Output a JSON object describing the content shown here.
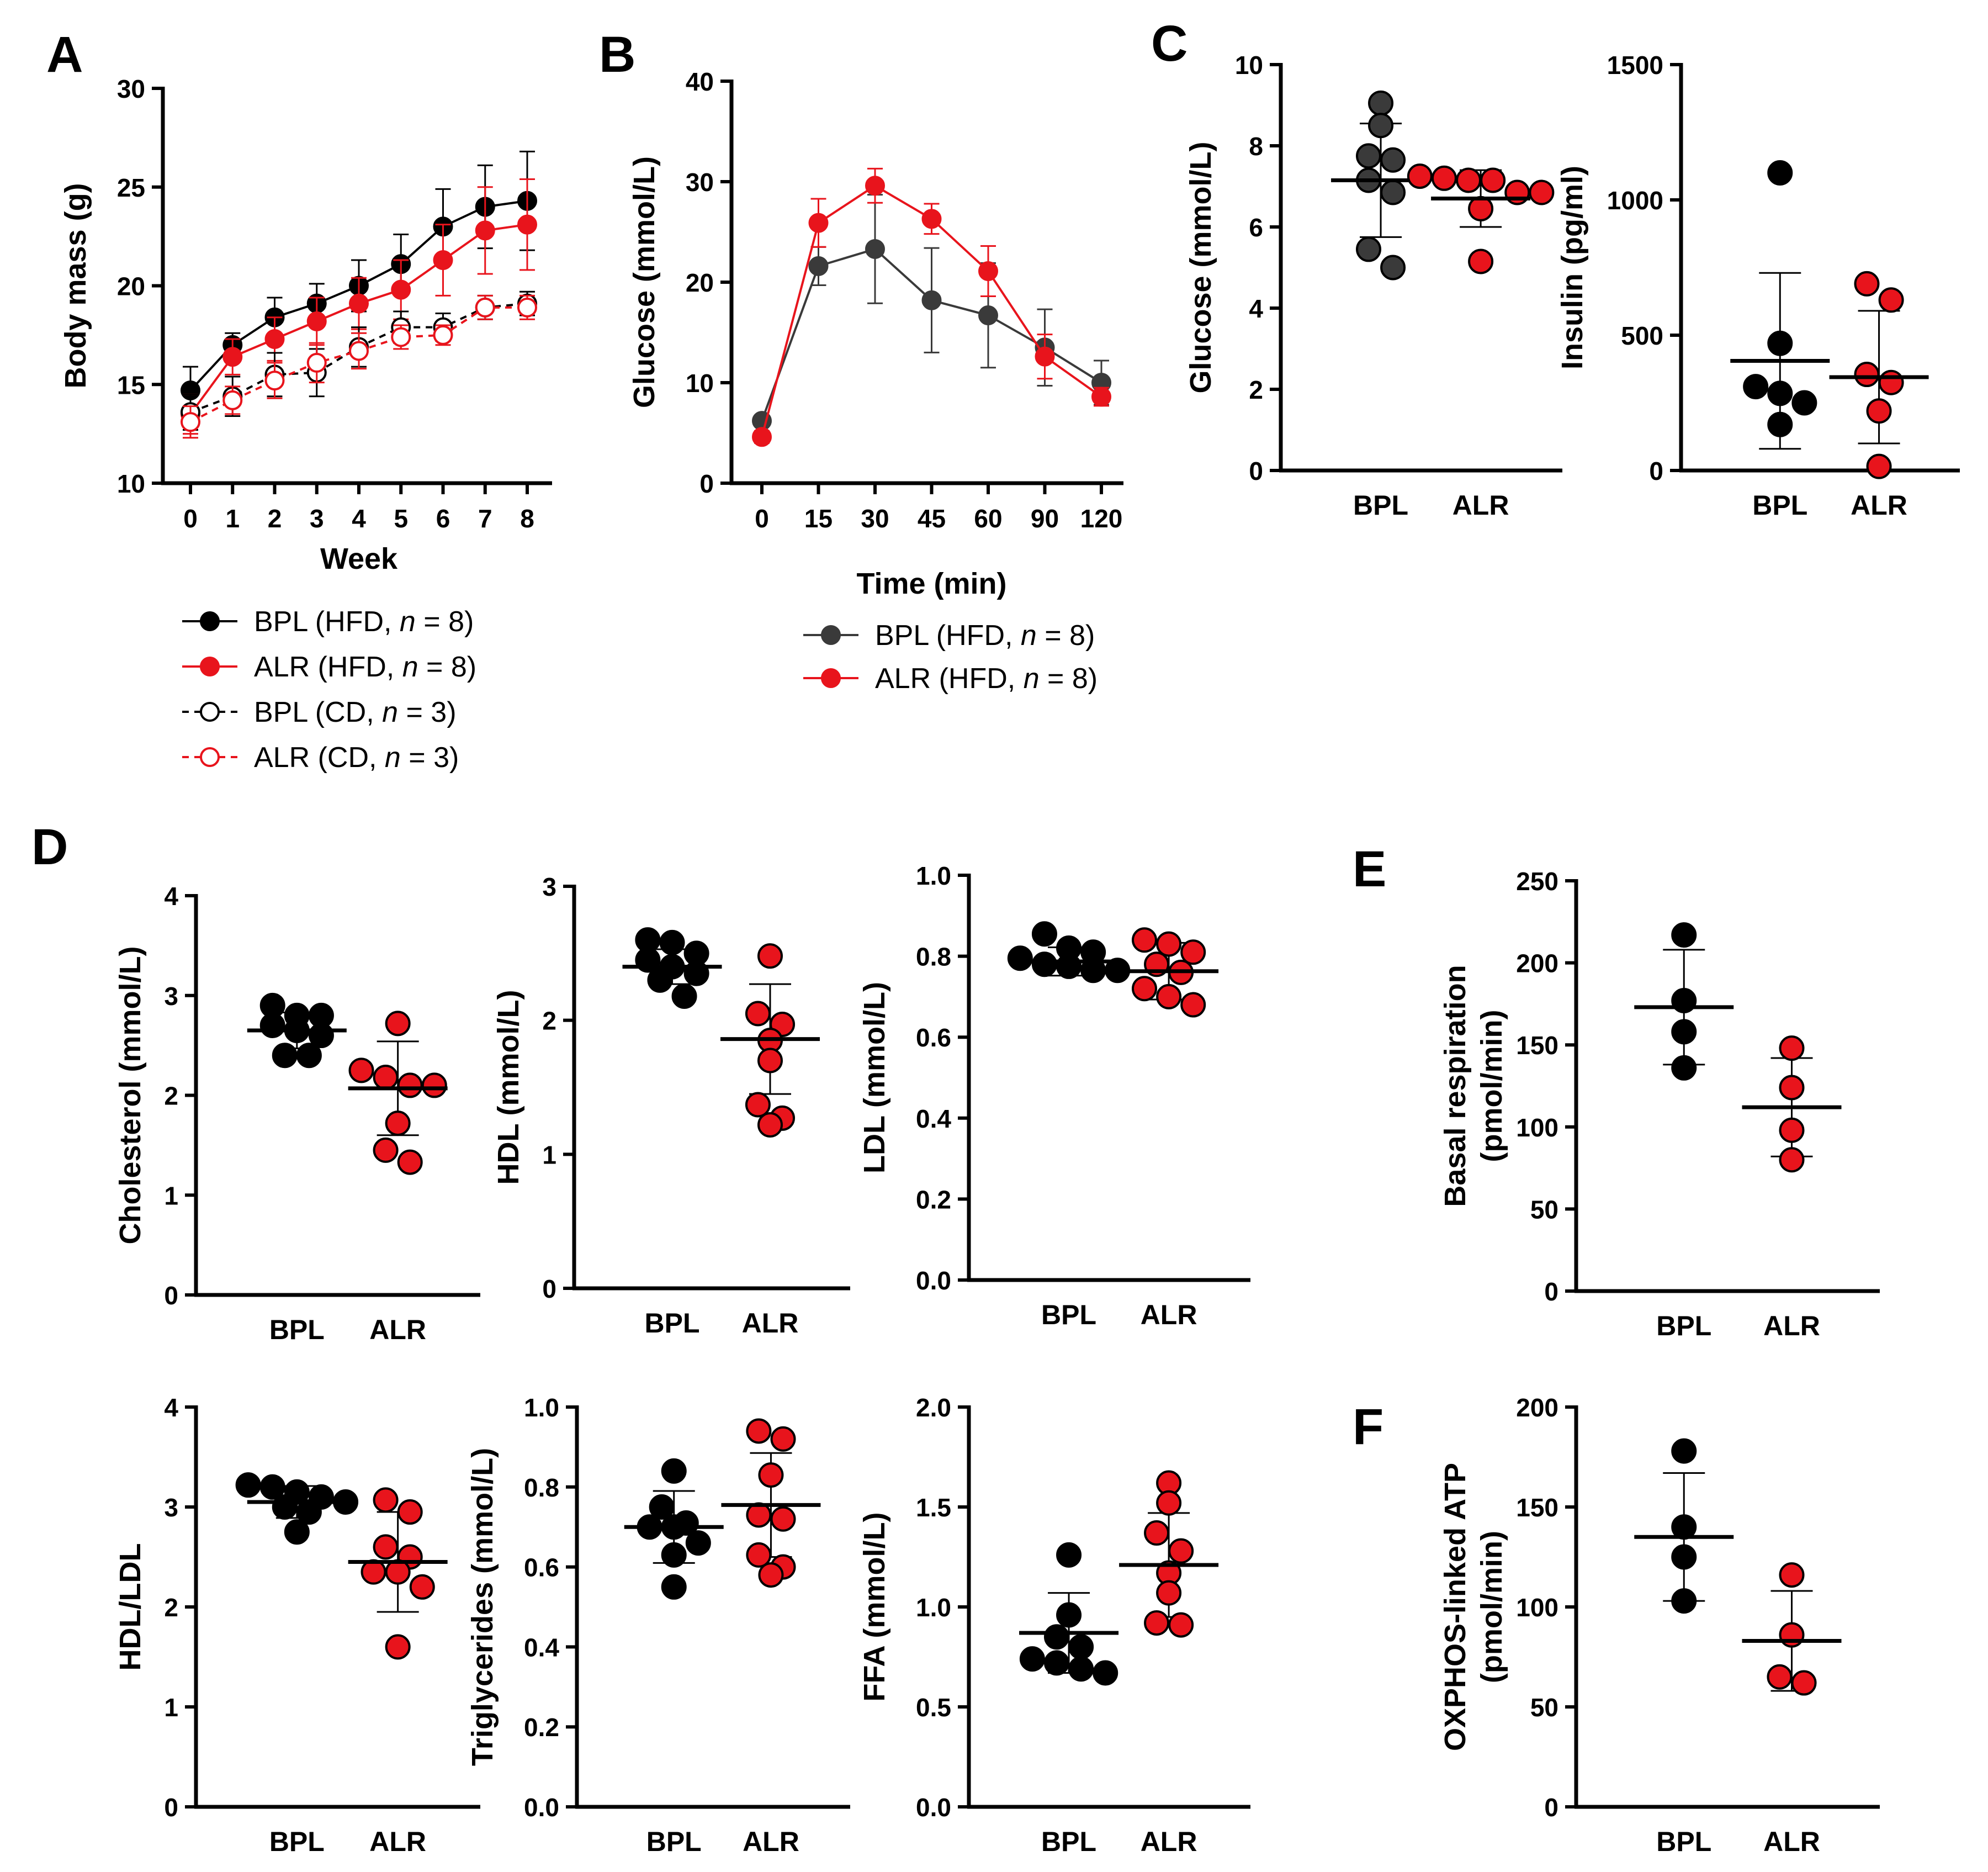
{
  "colors": {
    "bpl": "#000000",
    "bpl_gray": "#3a3a3a",
    "alr": "#e8141c",
    "axis": "#000000"
  },
  "panel_letters": [
    "A",
    "B",
    "C",
    "D",
    "E",
    "F"
  ],
  "chart_data": [
    {
      "id": "A",
      "type": "line",
      "letter": "A",
      "xlabel": "Week",
      "ylabel": "Body mass (g)",
      "ylim": [
        10,
        30
      ],
      "yticks": [
        10,
        15,
        20,
        25,
        30
      ],
      "categories": [
        "0",
        "1",
        "2",
        "3",
        "4",
        "5",
        "6",
        "7",
        "8"
      ],
      "series": [
        {
          "name": "BPL (HFD, n = 8)",
          "group": "BPL",
          "diet": "(HFD, ",
          "n": "8",
          "color": "#000000",
          "filled": true,
          "dashed": false,
          "values": [
            14.7,
            17.0,
            18.4,
            19.1,
            20.0,
            21.1,
            23.0,
            24.0,
            24.3
          ],
          "errors": [
            1.2,
            0.6,
            1.0,
            1.0,
            1.3,
            1.5,
            1.9,
            2.1,
            2.5
          ]
        },
        {
          "name": "ALR (HFD, n = 8)",
          "group": "ALR",
          "diet": "(HFD, ",
          "n": "8",
          "color": "#e8141c",
          "filled": true,
          "dashed": false,
          "values": [
            13.5,
            16.4,
            17.3,
            18.2,
            19.1,
            19.8,
            21.3,
            22.8,
            23.1
          ],
          "errors": [
            1.0,
            0.9,
            1.1,
            1.2,
            1.3,
            1.5,
            1.8,
            2.2,
            2.3
          ]
        },
        {
          "name": "BPL (CD, n = 3)",
          "group": "BPL",
          "diet": "(CD, ",
          "n": "3",
          "color": "#000000",
          "filled": false,
          "dashed": true,
          "values": [
            13.6,
            14.4,
            15.5,
            15.6,
            16.9,
            17.9,
            17.9,
            18.9,
            19.1
          ],
          "errors": [
            0.9,
            1.0,
            1.1,
            1.2,
            1.0,
            0.8,
            0.7,
            0.6,
            0.6
          ]
        },
        {
          "name": "ALR (CD, n = 3)",
          "group": "ALR",
          "diet": "(CD, ",
          "n": "3",
          "color": "#e8141c",
          "filled": false,
          "dashed": true,
          "values": [
            13.1,
            14.2,
            15.2,
            16.1,
            16.7,
            17.4,
            17.5,
            18.9,
            18.9
          ],
          "errors": [
            0.8,
            0.7,
            0.9,
            1.0,
            0.9,
            0.6,
            0.5,
            0.6,
            0.6
          ]
        }
      ]
    },
    {
      "id": "B",
      "type": "line",
      "letter": "B",
      "xlabel": "Time (min)",
      "ylabel": "Glucose (mmol/L)",
      "ylim": [
        0,
        40
      ],
      "yticks": [
        0,
        10,
        20,
        30,
        40
      ],
      "categories": [
        "0",
        "15",
        "30",
        "45",
        "60",
        "90",
        "120"
      ],
      "series": [
        {
          "name": "BPL (HFD, n = 8)",
          "group": "BPL",
          "diet": "(HFD, ",
          "n": "8",
          "color": "#3a3a3a",
          "filled": true,
          "dashed": false,
          "values": [
            6.2,
            21.6,
            23.3,
            18.2,
            16.7,
            13.5,
            10.0
          ],
          "errors": [
            0.3,
            1.9,
            5.4,
            5.2,
            5.2,
            3.8,
            2.2
          ]
        },
        {
          "name": "ALR (HFD, n = 8)",
          "group": "ALR",
          "diet": "(HFD, ",
          "n": "8",
          "color": "#e8141c",
          "filled": true,
          "dashed": false,
          "values": [
            4.6,
            25.9,
            29.6,
            26.3,
            21.1,
            12.6,
            8.6
          ],
          "errors": [
            0.6,
            2.4,
            1.7,
            1.5,
            2.5,
            2.2,
            0.9
          ]
        }
      ]
    },
    {
      "id": "C1",
      "type": "scatter",
      "letter": "C",
      "ylabel": "Glucose (mmol/L)",
      "ylim": [
        0,
        10
      ],
      "yticks": [
        0,
        2,
        4,
        6,
        8,
        10
      ],
      "categories": [
        "BPL",
        "ALR"
      ],
      "groups": [
        {
          "name": "BPL",
          "color": "#3a3a3a",
          "mean": 7.15,
          "sd": 1.4,
          "points": [
            9.05,
            8.5,
            7.75,
            7.65,
            7.15,
            6.85,
            5.45,
            5.0
          ]
        },
        {
          "name": "ALR",
          "color": "#e8141c",
          "mean": 6.7,
          "sd": 0.7,
          "points": [
            7.25,
            7.2,
            7.15,
            7.15,
            6.85,
            6.85,
            6.45,
            5.15
          ]
        }
      ]
    },
    {
      "id": "C2",
      "type": "scatter",
      "ylabel": "Insulin (pg/ml)",
      "ylim": [
        0,
        1500
      ],
      "yticks": [
        0,
        500,
        1000,
        1500
      ],
      "categories": [
        "BPL",
        "ALR"
      ],
      "groups": [
        {
          "name": "BPL",
          "color": "#000000",
          "mean": 405,
          "sd": 325,
          "points": [
            1100,
            470,
            310,
            285,
            250,
            170
          ]
        },
        {
          "name": "ALR",
          "color": "#e8141c",
          "mean": 345,
          "sd": 245,
          "points": [
            690,
            630,
            355,
            325,
            220,
            15
          ]
        }
      ]
    },
    {
      "id": "D1",
      "type": "scatter",
      "letter": "D",
      "ylabel": "Cholesterol (mmol/L)",
      "ylim": [
        0,
        4
      ],
      "yticks": [
        0,
        1,
        2,
        3,
        4
      ],
      "categories": [
        "BPL",
        "ALR"
      ],
      "groups": [
        {
          "name": "BPL",
          "color": "#000000",
          "mean": 2.65,
          "sd": 0.18,
          "points": [
            2.9,
            2.8,
            2.8,
            2.7,
            2.65,
            2.6,
            2.4,
            2.4
          ]
        },
        {
          "name": "ALR",
          "color": "#e8141c",
          "mean": 2.07,
          "sd": 0.47,
          "points": [
            2.72,
            2.25,
            2.18,
            2.1,
            2.1,
            1.72,
            1.45,
            1.33
          ]
        }
      ]
    },
    {
      "id": "D2",
      "type": "scatter",
      "ylabel": "HDL (mmol/L)",
      "ylim": [
        0,
        3
      ],
      "yticks": [
        0,
        1,
        2,
        3
      ],
      "categories": [
        "BPL",
        "ALR"
      ],
      "groups": [
        {
          "name": "BPL",
          "color": "#000000",
          "mean": 2.4,
          "sd": 0.13,
          "points": [
            2.6,
            2.58,
            2.5,
            2.45,
            2.4,
            2.35,
            2.3,
            2.18
          ]
        },
        {
          "name": "ALR",
          "color": "#e8141c",
          "mean": 1.86,
          "sd": 0.41,
          "points": [
            2.48,
            2.05,
            1.97,
            1.85,
            1.7,
            1.37,
            1.27,
            1.22
          ]
        }
      ]
    },
    {
      "id": "D3",
      "type": "scatter",
      "ylabel": "LDL (mmol/L)",
      "ylim": [
        0,
        1
      ],
      "yticks": [
        "0.0",
        "0.2",
        "0.4",
        "0.6",
        "0.8",
        "1.0"
      ],
      "categories": [
        "BPL",
        "ALR"
      ],
      "groups": [
        {
          "name": "BPL",
          "color": "#000000",
          "mean": 0.787,
          "sd": 0.035,
          "points": [
            0.855,
            0.82,
            0.81,
            0.795,
            0.78,
            0.775,
            0.765,
            0.765
          ]
        },
        {
          "name": "ALR",
          "color": "#e8141c",
          "mean": 0.763,
          "sd": 0.07,
          "points": [
            0.84,
            0.83,
            0.81,
            0.78,
            0.76,
            0.72,
            0.7,
            0.68
          ]
        }
      ]
    },
    {
      "id": "D4",
      "type": "scatter",
      "ylabel": "HDL/LDL",
      "ylim": [
        0,
        4
      ],
      "yticks": [
        0,
        1,
        2,
        3,
        4
      ],
      "categories": [
        "BPL",
        "ALR"
      ],
      "groups": [
        {
          "name": "BPL",
          "color": "#000000",
          "mean": 3.05,
          "sd": 0.16,
          "points": [
            3.22,
            3.2,
            3.15,
            3.1,
            3.05,
            3.0,
            2.95,
            2.75
          ]
        },
        {
          "name": "ALR",
          "color": "#e8141c",
          "mean": 2.45,
          "sd": 0.5,
          "points": [
            3.07,
            2.95,
            2.6,
            2.5,
            2.35,
            2.35,
            2.2,
            1.6
          ]
        }
      ]
    },
    {
      "id": "D5",
      "type": "scatter",
      "ylabel": "Triglycerides (mmol/L)",
      "ylim": [
        0,
        1
      ],
      "yticks": [
        "0.0",
        "0.2",
        "0.4",
        "0.6",
        "0.8",
        "1.0"
      ],
      "categories": [
        "BPL",
        "ALR"
      ],
      "groups": [
        {
          "name": "BPL",
          "color": "#000000",
          "mean": 0.7,
          "sd": 0.09,
          "points": [
            0.84,
            0.75,
            0.71,
            0.7,
            0.7,
            0.66,
            0.63,
            0.55
          ]
        },
        {
          "name": "ALR",
          "color": "#e8141c",
          "mean": 0.755,
          "sd": 0.13,
          "points": [
            0.94,
            0.92,
            0.83,
            0.73,
            0.72,
            0.63,
            0.6,
            0.58
          ]
        }
      ]
    },
    {
      "id": "D6",
      "type": "scatter",
      "ylabel": "FFA (mmol/L)",
      "ylim": [
        0,
        2
      ],
      "yticks": [
        "0.0",
        "0.5",
        "1.0",
        "1.5",
        "2.0"
      ],
      "categories": [
        "BPL",
        "ALR"
      ],
      "groups": [
        {
          "name": "BPL",
          "color": "#000000",
          "mean": 0.87,
          "sd": 0.2,
          "points": [
            1.26,
            0.96,
            0.85,
            0.8,
            0.74,
            0.72,
            0.69,
            0.67
          ]
        },
        {
          "name": "ALR",
          "color": "#e8141c",
          "mean": 1.21,
          "sd": 0.26,
          "points": [
            1.62,
            1.52,
            1.37,
            1.28,
            1.17,
            1.07,
            0.92,
            0.91
          ]
        }
      ]
    },
    {
      "id": "E",
      "type": "scatter",
      "letter": "E",
      "ylabel": "Basal respiration",
      "ylabel2": "(pmol/min)",
      "ylim": [
        0,
        250
      ],
      "yticks": [
        0,
        50,
        100,
        150,
        200,
        250
      ],
      "categories": [
        "BPL",
        "ALR"
      ],
      "groups": [
        {
          "name": "BPL",
          "color": "#000000",
          "mean": 173,
          "sd": 35,
          "points": [
            217,
            177,
            158,
            136
          ]
        },
        {
          "name": "ALR",
          "color": "#e8141c",
          "mean": 112,
          "sd": 30,
          "points": [
            148,
            124,
            98,
            80
          ]
        }
      ]
    },
    {
      "id": "F",
      "type": "scatter",
      "letter": "F",
      "ylabel": "OXPHOS-linked ATP",
      "ylabel2": "(pmol/min)",
      "ylim": [
        0,
        200
      ],
      "yticks": [
        0,
        50,
        100,
        150,
        200
      ],
      "categories": [
        "BPL",
        "ALR"
      ],
      "groups": [
        {
          "name": "BPL",
          "color": "#000000",
          "mean": 135,
          "sd": 32,
          "points": [
            178,
            140,
            125,
            103
          ]
        },
        {
          "name": "ALR",
          "color": "#e8141c",
          "mean": 83,
          "sd": 25,
          "points": [
            116,
            86,
            65,
            62
          ]
        }
      ]
    }
  ]
}
